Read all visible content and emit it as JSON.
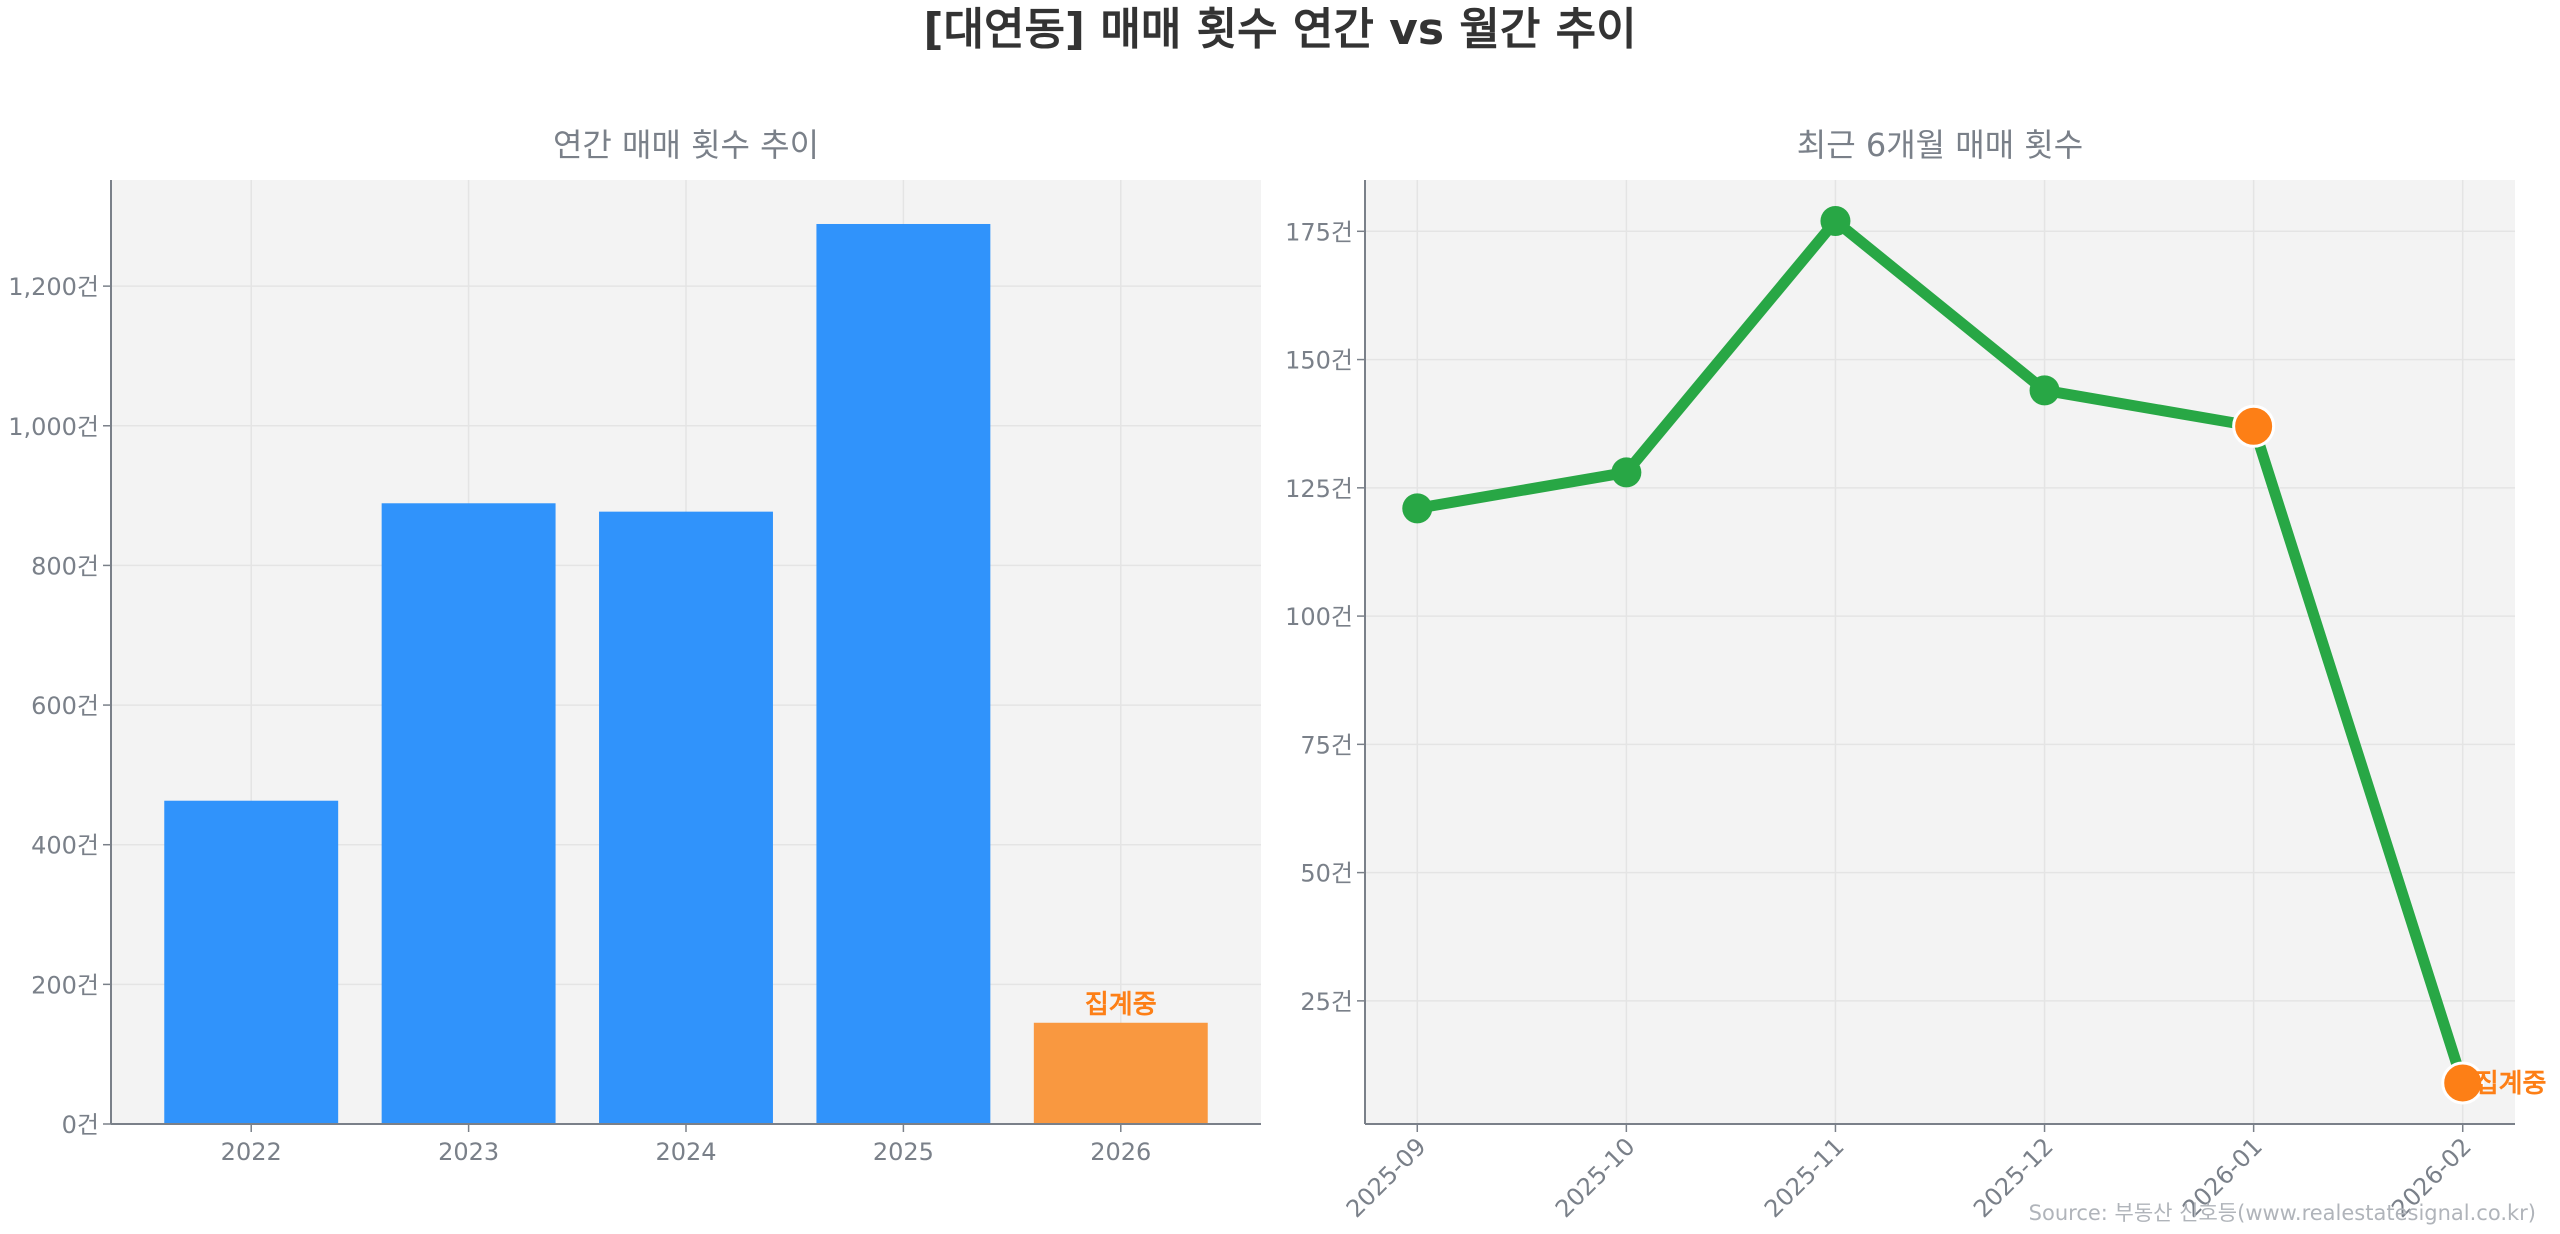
{
  "title": "[대연동] 매매 횟수 연간 vs 월간 추이",
  "source": "Source: 부동산 신호등(www.realestatesignal.co.kr)",
  "colors": {
    "bar": "#3093fb",
    "bar_partial": "#f99840",
    "line": "#28a745",
    "partial_point": "#fd7f16",
    "annotation": "#fd7f16",
    "axes_bg": "#f3f3f3",
    "text": "#7a8089"
  },
  "chart_data": [
    {
      "type": "bar",
      "title": "연간 매매 횟수 추이",
      "categories": [
        "2022",
        "2023",
        "2024",
        "2025",
        "2026"
      ],
      "values": [
        463,
        889,
        877,
        1289,
        145
      ],
      "partial": [
        false,
        false,
        false,
        false,
        true
      ],
      "annotation": {
        "category": "2026",
        "text": "집계중"
      },
      "ylim": [
        0,
        1352
      ],
      "yticks": [
        0,
        200,
        400,
        600,
        800,
        1000,
        1200
      ],
      "ytick_labels": [
        "0건",
        "200건",
        "400건",
        "600건",
        "800건",
        "1,000건",
        "1,200건"
      ],
      "grid": true
    },
    {
      "type": "line",
      "title": "최근 6개월 매매 횟수",
      "categories": [
        "2025-09",
        "2025-10",
        "2025-11",
        "2025-12",
        "2026-01",
        "2026-02"
      ],
      "values": [
        121,
        128,
        177,
        144,
        137,
        9
      ],
      "highlighted": [
        false,
        false,
        false,
        false,
        true,
        true
      ],
      "annotation": {
        "category": "2026-02",
        "text": "집계중"
      },
      "ylim": [
        1,
        185
      ],
      "yticks": [
        25,
        50,
        75,
        100,
        125,
        150,
        175
      ],
      "ytick_labels": [
        "25건",
        "50건",
        "75건",
        "100건",
        "125건",
        "150건",
        "175건"
      ],
      "grid": true
    }
  ]
}
